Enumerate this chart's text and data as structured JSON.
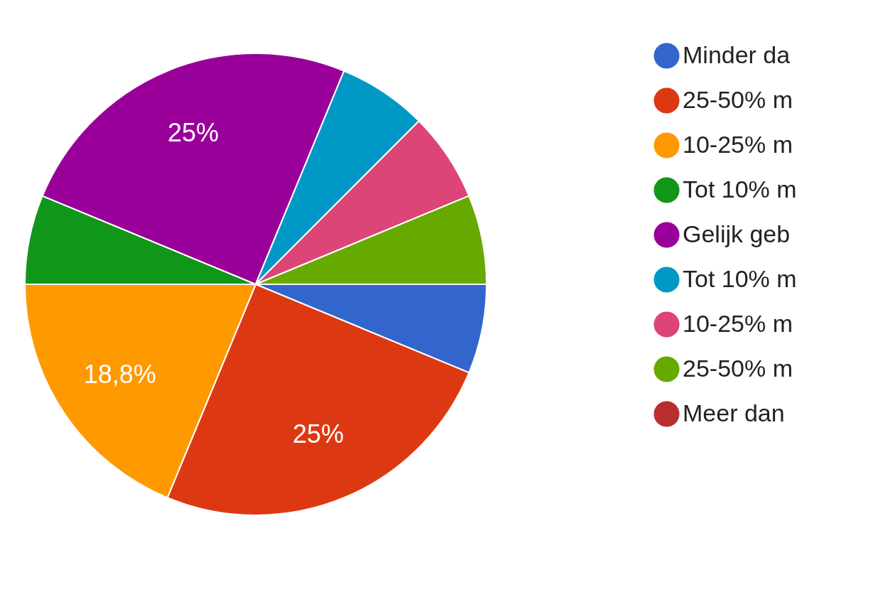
{
  "chart_data": {
    "type": "pie",
    "categories": [
      "Minder da",
      "25-50% m",
      "10-25% m",
      "Tot 10% m",
      "Gelijk geb",
      "Tot 10% m",
      "10-25% m",
      "25-50% m",
      "Meer dan"
    ],
    "values": [
      6.25,
      25,
      18.75,
      6.25,
      25,
      6.25,
      6.25,
      6.25,
      0
    ],
    "colors": [
      "#3366cc",
      "#dc3912",
      "#ff9900",
      "#109618",
      "#990099",
      "#0099c6",
      "#dd4477",
      "#66aa00",
      "#b82e2e"
    ],
    "value_labels": [
      null,
      "25%",
      "18,8%",
      null,
      "25%",
      null,
      null,
      null,
      null
    ],
    "legend": "right"
  }
}
